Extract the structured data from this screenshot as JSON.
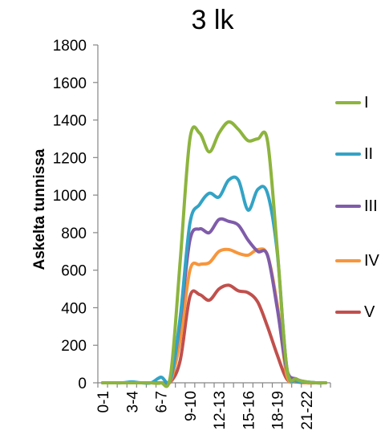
{
  "chart_data": {
    "type": "line",
    "title": "3 lk",
    "ylabel": "Askelta tunnissa",
    "xlabel": "",
    "ylim": [
      0,
      1800
    ],
    "yticks": [
      0,
      200,
      400,
      600,
      800,
      1000,
      1200,
      1400,
      1600,
      1800
    ],
    "grid": false,
    "legend_position": "right",
    "categories": [
      "0-1",
      "1-2",
      "2-3",
      "3-4",
      "4-5",
      "5-6",
      "6-7",
      "7-8",
      "8-9",
      "9-10",
      "10-11",
      "11-12",
      "12-13",
      "13-14",
      "14-15",
      "15-16",
      "16-17",
      "17-18",
      "18-19",
      "19-20",
      "20-21",
      "21-22",
      "22-23",
      "23-24"
    ],
    "x_tick_labels": [
      "0-1",
      "3-4",
      "6-7",
      "9-10",
      "12-13",
      "15-16",
      "18-19",
      "21-22"
    ],
    "series": [
      {
        "name": "I",
        "color": "#8DB43E",
        "values": [
          0,
          0,
          0,
          0,
          0,
          0,
          0,
          40,
          650,
          1300,
          1330,
          1230,
          1330,
          1390,
          1350,
          1290,
          1300,
          1290,
          720,
          80,
          20,
          5,
          0,
          0
        ]
      },
      {
        "name": "II",
        "color": "#33A3C5",
        "values": [
          0,
          0,
          0,
          5,
          0,
          0,
          30,
          20,
          350,
          850,
          950,
          1010,
          990,
          1080,
          1080,
          920,
          1030,
          1010,
          700,
          80,
          10,
          5,
          0,
          0
        ]
      },
      {
        "name": "III",
        "color": "#7F5CAA",
        "values": [
          0,
          0,
          0,
          0,
          0,
          0,
          0,
          20,
          330,
          760,
          820,
          800,
          870,
          860,
          840,
          760,
          700,
          680,
          400,
          70,
          20,
          5,
          0,
          0
        ]
      },
      {
        "name": "IV",
        "color": "#F7963C",
        "values": [
          0,
          0,
          0,
          0,
          0,
          0,
          0,
          10,
          230,
          600,
          630,
          640,
          700,
          710,
          690,
          680,
          710,
          680,
          420,
          40,
          10,
          0,
          0,
          0
        ]
      },
      {
        "name": "V",
        "color": "#C0504D",
        "values": [
          0,
          0,
          0,
          0,
          0,
          0,
          0,
          5,
          120,
          460,
          470,
          440,
          500,
          520,
          490,
          480,
          430,
          300,
          150,
          20,
          5,
          0,
          0,
          0
        ]
      }
    ]
  }
}
